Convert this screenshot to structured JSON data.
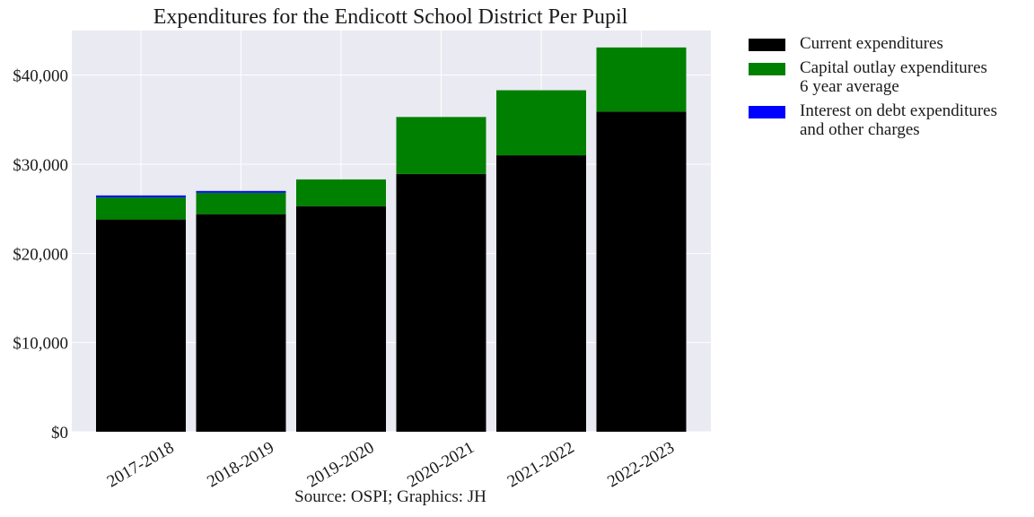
{
  "chart_data": {
    "type": "bar",
    "stacked": true,
    "title": "Expenditures for the Endicott School District Per Pupil",
    "caption": "Source: OSPI; Graphics: JH",
    "categories": [
      "2017-2018",
      "2018-2019",
      "2019-2020",
      "2020-2021",
      "2021-2022",
      "2022-2023"
    ],
    "series": [
      {
        "name": "Current expenditures",
        "color": "#000000",
        "values": [
          23800,
          24400,
          25300,
          28900,
          31000,
          35900
        ]
      },
      {
        "name": "Capital outlay expenditures\n6 year average",
        "color": "#008000",
        "values": [
          2500,
          2400,
          3000,
          6400,
          7300,
          7200
        ]
      },
      {
        "name": "Interest on debt expenditures\nand other charges",
        "color": "#0000ff",
        "values": [
          200,
          200,
          0,
          0,
          0,
          0
        ]
      }
    ],
    "ylim": [
      0,
      45000
    ],
    "yticks": [
      0,
      10000,
      20000,
      30000,
      40000
    ],
    "ytick_labels": [
      "$0",
      "$10,000",
      "$20,000",
      "$30,000",
      "$40,000"
    ],
    "xlabel": "",
    "ylabel": "",
    "grid": true,
    "legend_position": "outside-right"
  }
}
